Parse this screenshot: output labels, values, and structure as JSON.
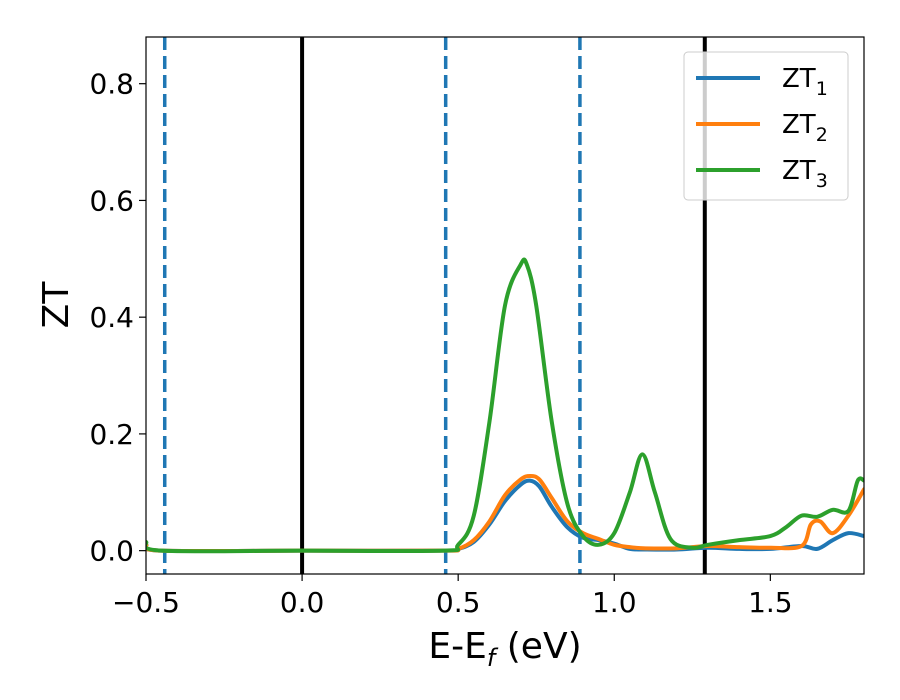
{
  "chart_data": {
    "type": "line",
    "xlabel": "E-E",
    "xlabel_subscript": "f",
    "xlabel_unit": " (eV)",
    "ylabel": "ZT",
    "xlim": [
      -0.5,
      1.8
    ],
    "ylim": [
      -0.04,
      0.88
    ],
    "xticks": [
      -0.5,
      0.0,
      0.5,
      1.0,
      1.5
    ],
    "xtick_labels": [
      "−0.5",
      "0.0",
      "0.5",
      "1.0",
      "1.5"
    ],
    "yticks": [
      0.0,
      0.2,
      0.4,
      0.6,
      0.8
    ],
    "ytick_labels": [
      "0.0",
      "0.2",
      "0.4",
      "0.6",
      "0.8"
    ],
    "grid": false,
    "legend_position": "top-right",
    "vertical_lines": [
      {
        "x": -0.44,
        "style": "dashed",
        "color": "#1f77b4"
      },
      {
        "x": 0.0,
        "style": "solid",
        "color": "#000000"
      },
      {
        "x": 0.46,
        "style": "dashed",
        "color": "#1f77b4"
      },
      {
        "x": 0.89,
        "style": "dashed",
        "color": "#1f77b4"
      },
      {
        "x": 1.29,
        "style": "solid",
        "color": "#000000"
      }
    ],
    "series": [
      {
        "name": "ZT",
        "subscript": "1",
        "color": "#1f77b4",
        "x": [
          -0.5,
          -0.45,
          0.0,
          0.45,
          0.5,
          0.55,
          0.6,
          0.65,
          0.7,
          0.73,
          0.76,
          0.8,
          0.85,
          0.9,
          0.95,
          1.0,
          1.05,
          1.1,
          1.2,
          1.3,
          1.4,
          1.5,
          1.6,
          1.65,
          1.7,
          1.75,
          1.8
        ],
        "y": [
          0.01,
          0.0,
          0.0,
          0.0,
          0.003,
          0.015,
          0.045,
          0.085,
          0.113,
          0.12,
          0.11,
          0.075,
          0.04,
          0.022,
          0.018,
          0.012,
          0.003,
          0.002,
          0.002,
          0.005,
          0.003,
          0.003,
          0.008,
          0.003,
          0.018,
          0.03,
          0.025
        ]
      },
      {
        "name": "ZT",
        "subscript": "2",
        "color": "#ff7f0e",
        "x": [
          -0.5,
          -0.45,
          0.0,
          0.45,
          0.5,
          0.55,
          0.6,
          0.65,
          0.7,
          0.73,
          0.76,
          0.8,
          0.85,
          0.9,
          0.95,
          1.0,
          1.05,
          1.1,
          1.2,
          1.3,
          1.4,
          1.5,
          1.6,
          1.63,
          1.66,
          1.7,
          1.75,
          1.8
        ],
        "y": [
          0.01,
          0.0,
          0.0,
          0.0,
          0.003,
          0.018,
          0.05,
          0.095,
          0.122,
          0.128,
          0.122,
          0.09,
          0.05,
          0.03,
          0.02,
          0.01,
          0.006,
          0.004,
          0.004,
          0.008,
          0.006,
          0.005,
          0.008,
          0.045,
          0.05,
          0.03,
          0.06,
          0.105
        ]
      },
      {
        "name": "ZT",
        "subscript": "3",
        "color": "#2ca02c",
        "x": [
          -0.5,
          -0.45,
          0.0,
          0.45,
          0.5,
          0.55,
          0.6,
          0.65,
          0.7,
          0.72,
          0.75,
          0.8,
          0.85,
          0.9,
          0.95,
          1.0,
          1.05,
          1.09,
          1.13,
          1.18,
          1.25,
          1.3,
          1.4,
          1.5,
          1.55,
          1.6,
          1.65,
          1.7,
          1.75,
          1.78,
          1.8
        ],
        "y": [
          0.015,
          0.0,
          0.0,
          0.0,
          0.01,
          0.06,
          0.22,
          0.42,
          0.49,
          0.49,
          0.42,
          0.22,
          0.08,
          0.025,
          0.01,
          0.03,
          0.1,
          0.165,
          0.1,
          0.02,
          0.005,
          0.01,
          0.018,
          0.025,
          0.04,
          0.06,
          0.058,
          0.07,
          0.068,
          0.12,
          0.12
        ]
      }
    ]
  }
}
